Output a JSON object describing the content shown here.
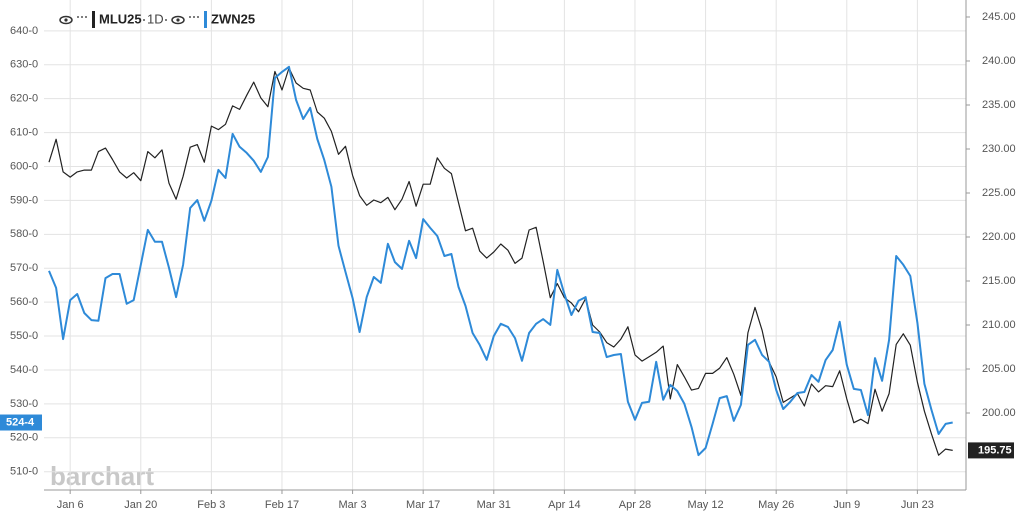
{
  "chart_data": {
    "type": "line",
    "interval": "1D",
    "watermark": "barchart",
    "categories": [
      null,
      null,
      null,
      "Jan 6",
      null,
      null,
      null,
      null,
      null,
      null,
      null,
      null,
      null,
      "Jan 20",
      null,
      null,
      null,
      null,
      null,
      null,
      null,
      null,
      null,
      "Feb 3",
      null,
      null,
      null,
      null,
      null,
      null,
      null,
      null,
      null,
      "Feb 17",
      null,
      null,
      null,
      null,
      null,
      null,
      null,
      null,
      null,
      "Mar 3",
      null,
      null,
      null,
      null,
      null,
      null,
      null,
      null,
      null,
      "Mar 17",
      null,
      null,
      null,
      null,
      null,
      null,
      null,
      null,
      null,
      "Mar 31",
      null,
      null,
      null,
      null,
      null,
      null,
      null,
      null,
      null,
      "Apr 14",
      null,
      null,
      null,
      null,
      null,
      null,
      null,
      null,
      null,
      "Apr 28",
      null,
      null,
      null,
      null,
      null,
      null,
      null,
      null,
      null,
      "May 12",
      null,
      null,
      null,
      null,
      null,
      null,
      null,
      null,
      null,
      "May 26",
      null,
      null,
      null,
      null,
      null,
      null,
      null,
      null,
      null,
      "Jun 9",
      null,
      null,
      null,
      null,
      null,
      null,
      null,
      null,
      null,
      "Jun 23",
      null,
      null,
      null,
      null,
      null
    ],
    "series": [
      {
        "name": "MLU25",
        "color": "#222222",
        "axis": "y2",
        "values": [
          228.5,
          231.1,
          227.4,
          226.8,
          227.4,
          227.6,
          227.6,
          229.7,
          230.1,
          228.8,
          227.4,
          226.7,
          227.3,
          226.4,
          229.7,
          229.0,
          229.9,
          226.1,
          224.3,
          226.9,
          230.2,
          230.5,
          228.5,
          232.6,
          232.2,
          232.8,
          234.9,
          234.5,
          236.1,
          237.6,
          235.8,
          234.8,
          238.8,
          236.7,
          239.2,
          237.5,
          236.9,
          236.7,
          234.2,
          233.5,
          232.0,
          229.4,
          230.3,
          227.0,
          224.7,
          223.6,
          224.2,
          223.9,
          224.5,
          223.1,
          224.3,
          226.3,
          223.5,
          226.0,
          226.0,
          229.0,
          227.8,
          227.2,
          223.9,
          220.7,
          221.0,
          218.4,
          217.6,
          218.3,
          219.2,
          218.5,
          217.0,
          217.6,
          220.8,
          221.1,
          217.2,
          213.1,
          214.7,
          213.1,
          212.5,
          211.5,
          213.0,
          210.0,
          209.2,
          208.0,
          207.5,
          208.4,
          209.8,
          206.6,
          205.9,
          206.4,
          206.9,
          207.6,
          201.6,
          205.5,
          204.1,
          202.6,
          202.8,
          204.5,
          204.5,
          205.1,
          206.3,
          204.4,
          202.0,
          209.1,
          212.0,
          209.4,
          205.8,
          204.1,
          201.2,
          201.7,
          202.2,
          200.8,
          203.3,
          202.4,
          203.1,
          203.0,
          204.8,
          201.6,
          198.9,
          199.3,
          198.8,
          202.7,
          200.2,
          202.2,
          207.8,
          209.0,
          207.7,
          203.5,
          200.2,
          197.6,
          195.2,
          195.9,
          195.75
        ]
      },
      {
        "name": "ZWN25",
        "color": "#2e8ad8",
        "axis": "y",
        "last_label": "524-4",
        "values": [
          569.2,
          564.2,
          549.1,
          560.6,
          562.4,
          556.8,
          554.7,
          554.5,
          567.1,
          568.3,
          568.3,
          559.5,
          560.6,
          571.0,
          581.3,
          577.8,
          577.8,
          570.1,
          561.5,
          571.0,
          587.8,
          590.1,
          584.0,
          589.9,
          599.0,
          596.6,
          609.6,
          605.8,
          604.0,
          601.7,
          598.4,
          602.8,
          626.1,
          627.9,
          629.4,
          619.6,
          614.0,
          617.3,
          608.1,
          601.9,
          594.0,
          576.6,
          568.9,
          561.2,
          551.2,
          561.5,
          567.4,
          565.7,
          577.2,
          571.8,
          569.8,
          578.1,
          573.0,
          584.5,
          581.9,
          579.5,
          573.6,
          574.2,
          564.5,
          558.9,
          550.9,
          547.4,
          543.0,
          550.0,
          553.6,
          552.7,
          549.4,
          542.7,
          550.9,
          553.6,
          555.0,
          553.3,
          569.5,
          562.4,
          556.2,
          560.4,
          561.5,
          551.2,
          550.9,
          543.8,
          544.4,
          544.7,
          530.6,
          525.3,
          530.3,
          530.6,
          542.4,
          531.2,
          535.6,
          533.8,
          530.0,
          523.2,
          514.9,
          517.0,
          524.1,
          531.7,
          532.3,
          525.0,
          529.7,
          547.4,
          548.9,
          544.4,
          542.4,
          534.1,
          528.5,
          530.6,
          533.2,
          533.5,
          538.5,
          536.5,
          542.9,
          545.9,
          554.2,
          541.5,
          534.4,
          534.1,
          526.7,
          543.5,
          536.8,
          548.9,
          573.6,
          571.0,
          567.7,
          553.9,
          535.9,
          528.2,
          521.1,
          524.1,
          524.5
        ]
      }
    ],
    "ylim": [
      504.6,
      649.1
    ],
    "yticks": [
      {
        "value": 510,
        "label": "510-0"
      },
      {
        "value": 520,
        "label": "520-0"
      },
      {
        "value": 530,
        "label": "530-0"
      },
      {
        "value": 540,
        "label": "540-0"
      },
      {
        "value": 550,
        "label": "550-0"
      },
      {
        "value": 560,
        "label": "560-0"
      },
      {
        "value": 570,
        "label": "570-0"
      },
      {
        "value": 580,
        "label": "580-0"
      },
      {
        "value": 590,
        "label": "590-0"
      },
      {
        "value": 600,
        "label": "600-0"
      },
      {
        "value": 610,
        "label": "610-0"
      },
      {
        "value": 620,
        "label": "620-0"
      },
      {
        "value": 630,
        "label": "630-0"
      },
      {
        "value": 640,
        "label": "640-0"
      }
    ],
    "y2lim": [
      191.25,
      246.93
    ],
    "y2ticks": [
      {
        "value": 200,
        "label": "200.00"
      },
      {
        "value": 205,
        "label": "205.00"
      },
      {
        "value": 210,
        "label": "210.00"
      },
      {
        "value": 215,
        "label": "215.00"
      },
      {
        "value": 220,
        "label": "220.00"
      },
      {
        "value": 225,
        "label": "225.00"
      },
      {
        "value": 230,
        "label": "230.00"
      },
      {
        "value": 235,
        "label": "235.00"
      },
      {
        "value": 240,
        "label": "240.00"
      },
      {
        "value": 245,
        "label": "245.00"
      }
    ],
    "grid": true
  }
}
